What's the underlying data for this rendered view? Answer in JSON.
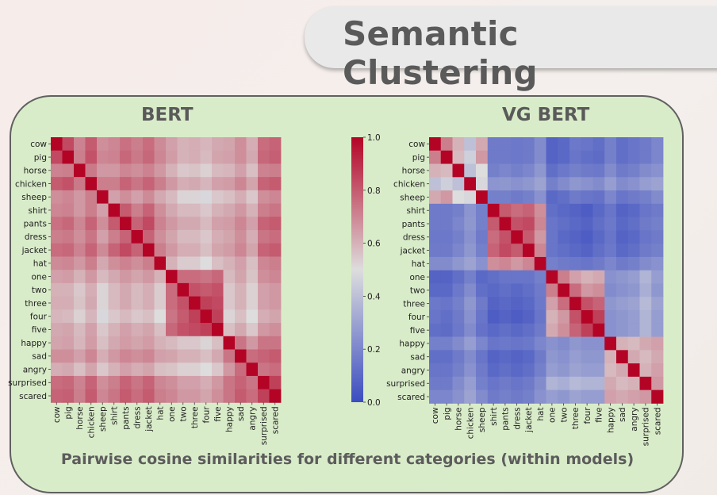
{
  "title": "Semantic Clustering",
  "caption": "Pairwise cosine similarities for different categories (within models)",
  "colormap": {
    "low": "#3b4cc0",
    "mid": "#dddddd",
    "high": "#b40426"
  },
  "chart_data": [
    {
      "type": "heatmap",
      "title": "BERT",
      "labels": [
        "cow",
        "pig",
        "horse",
        "chicken",
        "sheep",
        "shirt",
        "pants",
        "dress",
        "jacket",
        "hat",
        "one",
        "two",
        "three",
        "four",
        "five",
        "happy",
        "sad",
        "angry",
        "surprised",
        "scared"
      ],
      "values": [
        [
          1.0,
          0.84,
          0.71,
          0.8,
          0.68,
          0.7,
          0.75,
          0.72,
          0.76,
          0.69,
          0.64,
          0.6,
          0.61,
          0.59,
          0.62,
          0.63,
          0.68,
          0.61,
          0.76,
          0.78
        ],
        [
          0.84,
          1.0,
          0.72,
          0.82,
          0.7,
          0.71,
          0.77,
          0.73,
          0.77,
          0.7,
          0.65,
          0.6,
          0.61,
          0.58,
          0.63,
          0.64,
          0.68,
          0.62,
          0.77,
          0.79
        ],
        [
          0.71,
          0.72,
          1.0,
          0.73,
          0.66,
          0.66,
          0.7,
          0.68,
          0.71,
          0.66,
          0.6,
          0.55,
          0.56,
          0.53,
          0.58,
          0.59,
          0.64,
          0.57,
          0.71,
          0.72
        ],
        [
          0.8,
          0.82,
          0.73,
          1.0,
          0.72,
          0.72,
          0.78,
          0.74,
          0.78,
          0.72,
          0.66,
          0.61,
          0.62,
          0.59,
          0.64,
          0.65,
          0.7,
          0.63,
          0.78,
          0.8
        ],
        [
          0.68,
          0.7,
          0.66,
          0.72,
          1.0,
          0.64,
          0.68,
          0.64,
          0.69,
          0.62,
          0.58,
          0.52,
          0.52,
          0.48,
          0.55,
          0.57,
          0.61,
          0.55,
          0.68,
          0.7
        ],
        [
          0.7,
          0.71,
          0.66,
          0.72,
          0.64,
          1.0,
          0.8,
          0.72,
          0.78,
          0.68,
          0.62,
          0.58,
          0.58,
          0.55,
          0.6,
          0.62,
          0.66,
          0.6,
          0.72,
          0.74
        ],
        [
          0.75,
          0.77,
          0.7,
          0.78,
          0.68,
          0.8,
          1.0,
          0.78,
          0.84,
          0.71,
          0.66,
          0.62,
          0.62,
          0.58,
          0.64,
          0.65,
          0.7,
          0.64,
          0.78,
          0.8
        ],
        [
          0.72,
          0.73,
          0.68,
          0.74,
          0.64,
          0.72,
          0.78,
          1.0,
          0.78,
          0.68,
          0.63,
          0.58,
          0.58,
          0.55,
          0.61,
          0.63,
          0.68,
          0.61,
          0.74,
          0.76
        ],
        [
          0.76,
          0.77,
          0.71,
          0.78,
          0.69,
          0.78,
          0.84,
          0.78,
          1.0,
          0.72,
          0.66,
          0.61,
          0.61,
          0.57,
          0.63,
          0.65,
          0.7,
          0.63,
          0.78,
          0.8
        ],
        [
          0.69,
          0.7,
          0.66,
          0.72,
          0.62,
          0.68,
          0.71,
          0.68,
          0.72,
          1.0,
          0.6,
          0.54,
          0.54,
          0.5,
          0.57,
          0.6,
          0.64,
          0.57,
          0.7,
          0.72
        ],
        [
          0.64,
          0.65,
          0.6,
          0.66,
          0.58,
          0.62,
          0.66,
          0.63,
          0.66,
          0.6,
          1.0,
          0.76,
          0.76,
          0.74,
          0.77,
          0.58,
          0.63,
          0.56,
          0.68,
          0.7
        ],
        [
          0.6,
          0.6,
          0.55,
          0.61,
          0.52,
          0.58,
          0.62,
          0.58,
          0.61,
          0.54,
          0.76,
          1.0,
          0.82,
          0.8,
          0.82,
          0.55,
          0.6,
          0.53,
          0.64,
          0.66
        ],
        [
          0.61,
          0.61,
          0.56,
          0.62,
          0.52,
          0.58,
          0.62,
          0.58,
          0.61,
          0.54,
          0.76,
          0.82,
          1.0,
          0.86,
          0.84,
          0.55,
          0.6,
          0.53,
          0.64,
          0.66
        ],
        [
          0.59,
          0.58,
          0.53,
          0.59,
          0.48,
          0.55,
          0.58,
          0.55,
          0.57,
          0.5,
          0.74,
          0.8,
          0.86,
          1.0,
          0.86,
          0.52,
          0.57,
          0.5,
          0.61,
          0.63
        ],
        [
          0.62,
          0.63,
          0.58,
          0.64,
          0.55,
          0.6,
          0.64,
          0.61,
          0.63,
          0.57,
          0.77,
          0.82,
          0.84,
          0.86,
          1.0,
          0.57,
          0.62,
          0.55,
          0.66,
          0.68
        ],
        [
          0.63,
          0.64,
          0.59,
          0.65,
          0.57,
          0.62,
          0.65,
          0.63,
          0.65,
          0.6,
          0.58,
          0.55,
          0.55,
          0.52,
          0.57,
          1.0,
          0.74,
          0.66,
          0.74,
          0.74
        ],
        [
          0.68,
          0.68,
          0.64,
          0.7,
          0.61,
          0.66,
          0.7,
          0.68,
          0.7,
          0.64,
          0.63,
          0.6,
          0.6,
          0.57,
          0.62,
          0.74,
          1.0,
          0.76,
          0.78,
          0.8
        ],
        [
          0.61,
          0.62,
          0.57,
          0.63,
          0.55,
          0.6,
          0.64,
          0.61,
          0.63,
          0.57,
          0.56,
          0.53,
          0.53,
          0.5,
          0.55,
          0.66,
          0.76,
          1.0,
          0.74,
          0.76
        ],
        [
          0.76,
          0.77,
          0.71,
          0.78,
          0.68,
          0.72,
          0.78,
          0.74,
          0.78,
          0.7,
          0.68,
          0.64,
          0.64,
          0.61,
          0.66,
          0.74,
          0.78,
          0.74,
          1.0,
          0.86
        ],
        [
          0.78,
          0.79,
          0.72,
          0.8,
          0.7,
          0.74,
          0.8,
          0.76,
          0.8,
          0.72,
          0.7,
          0.66,
          0.66,
          0.63,
          0.68,
          0.74,
          0.8,
          0.76,
          0.86,
          1.0
        ]
      ]
    },
    {
      "type": "heatmap",
      "title": "VG BERT",
      "labels": [
        "cow",
        "pig",
        "horse",
        "chicken",
        "sheep",
        "shirt",
        "pants",
        "dress",
        "jacket",
        "hat",
        "one",
        "two",
        "three",
        "four",
        "five",
        "happy",
        "sad",
        "angry",
        "surprised",
        "scared"
      ],
      "values": [
        [
          1.0,
          0.72,
          0.6,
          0.4,
          0.62,
          0.16,
          0.16,
          0.15,
          0.16,
          0.22,
          0.08,
          0.1,
          0.15,
          0.14,
          0.12,
          0.18,
          0.12,
          0.14,
          0.16,
          0.2
        ],
        [
          0.72,
          1.0,
          0.58,
          0.45,
          0.66,
          0.16,
          0.16,
          0.15,
          0.16,
          0.22,
          0.08,
          0.1,
          0.14,
          0.12,
          0.11,
          0.18,
          0.12,
          0.14,
          0.16,
          0.2
        ],
        [
          0.6,
          0.58,
          1.0,
          0.4,
          0.5,
          0.18,
          0.2,
          0.18,
          0.2,
          0.26,
          0.12,
          0.15,
          0.18,
          0.16,
          0.15,
          0.22,
          0.16,
          0.18,
          0.22,
          0.24
        ],
        [
          0.4,
          0.45,
          0.4,
          1.0,
          0.48,
          0.25,
          0.26,
          0.24,
          0.26,
          0.3,
          0.18,
          0.22,
          0.26,
          0.24,
          0.22,
          0.28,
          0.22,
          0.24,
          0.28,
          0.3
        ],
        [
          0.62,
          0.66,
          0.5,
          0.48,
          1.0,
          0.18,
          0.18,
          0.16,
          0.18,
          0.24,
          0.1,
          0.12,
          0.16,
          0.14,
          0.13,
          0.2,
          0.14,
          0.16,
          0.18,
          0.22
        ],
        [
          0.16,
          0.16,
          0.18,
          0.25,
          0.18,
          1.0,
          0.8,
          0.76,
          0.78,
          0.68,
          0.12,
          0.1,
          0.08,
          0.06,
          0.1,
          0.14,
          0.08,
          0.1,
          0.14,
          0.16
        ],
        [
          0.16,
          0.16,
          0.2,
          0.26,
          0.18,
          0.8,
          1.0,
          0.82,
          0.84,
          0.7,
          0.14,
          0.12,
          0.1,
          0.08,
          0.12,
          0.15,
          0.1,
          0.12,
          0.16,
          0.18
        ],
        [
          0.15,
          0.15,
          0.18,
          0.24,
          0.16,
          0.76,
          0.82,
          1.0,
          0.8,
          0.66,
          0.14,
          0.1,
          0.08,
          0.06,
          0.1,
          0.14,
          0.08,
          0.1,
          0.14,
          0.16
        ],
        [
          0.16,
          0.16,
          0.2,
          0.26,
          0.18,
          0.78,
          0.84,
          0.8,
          1.0,
          0.7,
          0.14,
          0.12,
          0.1,
          0.08,
          0.12,
          0.15,
          0.1,
          0.12,
          0.16,
          0.18
        ],
        [
          0.22,
          0.22,
          0.26,
          0.3,
          0.24,
          0.68,
          0.7,
          0.66,
          0.7,
          1.0,
          0.18,
          0.16,
          0.15,
          0.14,
          0.16,
          0.2,
          0.16,
          0.18,
          0.22,
          0.24
        ],
        [
          0.08,
          0.08,
          0.12,
          0.18,
          0.1,
          0.12,
          0.14,
          0.14,
          0.14,
          0.18,
          1.0,
          0.72,
          0.64,
          0.6,
          0.62,
          0.24,
          0.26,
          0.28,
          0.36,
          0.28
        ],
        [
          0.1,
          0.1,
          0.15,
          0.22,
          0.12,
          0.1,
          0.12,
          0.1,
          0.12,
          0.16,
          0.72,
          1.0,
          0.76,
          0.66,
          0.68,
          0.22,
          0.24,
          0.26,
          0.34,
          0.26
        ],
        [
          0.15,
          0.14,
          0.18,
          0.26,
          0.16,
          0.08,
          0.1,
          0.08,
          0.1,
          0.15,
          0.64,
          0.76,
          1.0,
          0.82,
          0.78,
          0.26,
          0.28,
          0.3,
          0.38,
          0.3
        ],
        [
          0.14,
          0.12,
          0.16,
          0.24,
          0.14,
          0.06,
          0.08,
          0.06,
          0.08,
          0.14,
          0.6,
          0.66,
          0.82,
          1.0,
          0.86,
          0.24,
          0.26,
          0.28,
          0.36,
          0.28
        ],
        [
          0.12,
          0.11,
          0.15,
          0.22,
          0.13,
          0.1,
          0.12,
          0.1,
          0.12,
          0.16,
          0.62,
          0.68,
          0.78,
          0.86,
          1.0,
          0.24,
          0.26,
          0.28,
          0.36,
          0.28
        ],
        [
          0.18,
          0.18,
          0.22,
          0.28,
          0.2,
          0.14,
          0.15,
          0.14,
          0.15,
          0.2,
          0.24,
          0.22,
          0.26,
          0.24,
          0.24,
          1.0,
          0.6,
          0.58,
          0.62,
          0.64
        ],
        [
          0.12,
          0.12,
          0.16,
          0.22,
          0.14,
          0.08,
          0.1,
          0.08,
          0.1,
          0.16,
          0.26,
          0.24,
          0.28,
          0.26,
          0.26,
          0.6,
          1.0,
          0.62,
          0.58,
          0.62
        ],
        [
          0.14,
          0.14,
          0.18,
          0.24,
          0.16,
          0.1,
          0.12,
          0.1,
          0.12,
          0.18,
          0.28,
          0.26,
          0.3,
          0.28,
          0.28,
          0.58,
          0.62,
          1.0,
          0.6,
          0.64
        ],
        [
          0.16,
          0.16,
          0.22,
          0.28,
          0.18,
          0.14,
          0.16,
          0.14,
          0.16,
          0.22,
          0.36,
          0.34,
          0.38,
          0.36,
          0.36,
          0.62,
          0.58,
          0.6,
          1.0,
          0.66
        ],
        [
          0.2,
          0.2,
          0.24,
          0.3,
          0.22,
          0.16,
          0.18,
          0.16,
          0.18,
          0.24,
          0.28,
          0.26,
          0.3,
          0.28,
          0.28,
          0.64,
          0.62,
          0.64,
          0.66,
          1.0
        ]
      ]
    }
  ],
  "colorbar": {
    "min": 0.0,
    "max": 1.0,
    "ticks": [
      "0.0",
      "0.2",
      "0.4",
      "0.6",
      "0.8",
      "1.0"
    ]
  }
}
